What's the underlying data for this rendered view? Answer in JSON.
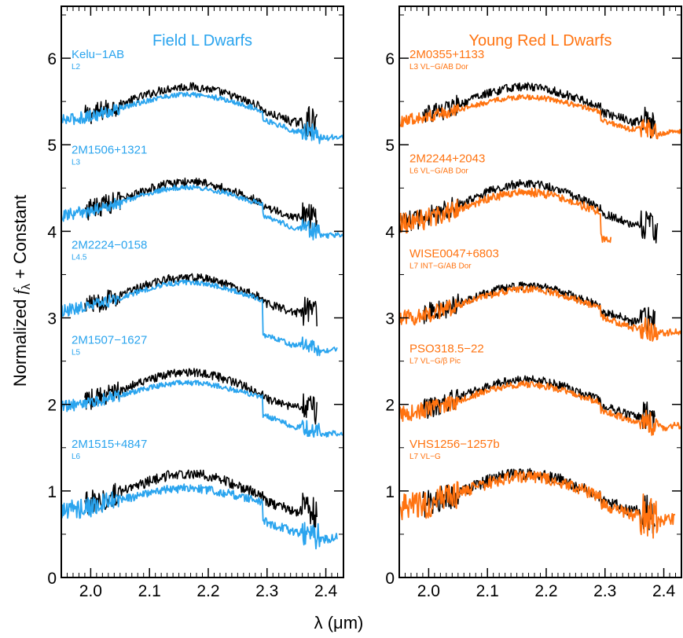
{
  "figure": {
    "ylabel_main": "Normalized ",
    "ylabel_f": "f",
    "ylabel_sub": "λ",
    "ylabel_tail": " + Constant",
    "xlabel": "λ (μm)",
    "colors": {
      "black": "#000000",
      "blue": "#2aa4ee",
      "orange": "#ff7310"
    }
  },
  "chart_data": [
    {
      "type": "line",
      "title": "Field L Dwarfs",
      "title_color": "#2aa4ee",
      "xlim": [
        1.95,
        2.43
      ],
      "ylim": [
        0,
        6.6
      ],
      "xticks": [
        "2.0",
        "2.1",
        "2.2",
        "2.3",
        "2.4"
      ],
      "yticks": [
        "0",
        "1",
        "2",
        "3",
        "4",
        "5",
        "6"
      ],
      "grid": false,
      "series": [
        {
          "name": "Kelu−1AB",
          "spt": "L2",
          "offset": 5.3,
          "object": {
            "start": 1.99,
            "end": 2.385,
            "peak": 0.42,
            "co_drop": 0.05,
            "noise": 0.05
          },
          "comparison": {
            "start": 1.95,
            "end": 2.43,
            "peak": 0.33,
            "co_drop": 0.1,
            "tail_slope": 0.7,
            "noise": 0.03
          }
        },
        {
          "name": "2M1506+1321",
          "spt": "L3",
          "offset": 4.2,
          "object": {
            "start": 1.99,
            "end": 2.385,
            "peak": 0.42,
            "co_drop": 0.05,
            "noise": 0.05
          },
          "comparison": {
            "start": 1.95,
            "end": 2.43,
            "peak": 0.36,
            "co_drop": 0.12,
            "tail_slope": 0.8,
            "noise": 0.03
          }
        },
        {
          "name": "2M2224−0158",
          "spt": "L4.5",
          "offset": 3.1,
          "object": {
            "start": 1.99,
            "end": 2.385,
            "peak": 0.42,
            "co_drop": 0.05,
            "noise": 0.05
          },
          "comparison": {
            "start": 1.95,
            "end": 2.42,
            "peak": 0.36,
            "co_drop": 0.4,
            "tail_slope": 0.3,
            "noise": 0.03
          }
        },
        {
          "name": "2M1507−1627",
          "spt": "L5",
          "offset": 2.0,
          "object": {
            "start": 1.99,
            "end": 2.385,
            "peak": 0.42,
            "co_drop": 0.05,
            "noise": 0.05
          },
          "comparison": {
            "start": 1.95,
            "end": 2.43,
            "peak": 0.3,
            "co_drop": 0.2,
            "tail_slope": 0.9,
            "noise": 0.03
          }
        },
        {
          "name": "2M1515+4847",
          "spt": "L6",
          "offset": 0.8,
          "object": {
            "start": 1.99,
            "end": 2.385,
            "peak": 0.45,
            "co_drop": 0.05,
            "noise": 0.06
          },
          "comparison": {
            "start": 1.95,
            "end": 2.42,
            "peak": 0.28,
            "co_drop": 0.22,
            "tail_slope": 0.8,
            "noise": 0.05
          }
        }
      ]
    },
    {
      "type": "line",
      "title": "Young Red L Dwarfs",
      "title_color": "#ff7310",
      "xlim": [
        1.95,
        2.43
      ],
      "ylim": [
        0,
        6.6
      ],
      "xticks": [
        "2.0",
        "2.1",
        "2.2",
        "2.3",
        "2.4"
      ],
      "yticks": [
        "0",
        "1",
        "2",
        "3",
        "4",
        "5",
        "6"
      ],
      "grid": false,
      "series": [
        {
          "name": "2M0355+1133",
          "spt": "L3 VL−G/AB Dor",
          "offset": 5.3,
          "object": {
            "start": 1.99,
            "end": 2.385,
            "peak": 0.42,
            "co_drop": 0.05,
            "noise": 0.05
          },
          "comparison": {
            "start": 1.95,
            "end": 2.43,
            "peak": 0.3,
            "co_drop": 0.1,
            "tail_slope": 0.2,
            "noise": 0.03
          }
        },
        {
          "name": "2M2244+2043",
          "spt": "L6 VL−G/AB Dor",
          "offset": 4.1,
          "object": {
            "start": 1.95,
            "end": 2.39,
            "peak": 0.5,
            "co_drop": 0.05,
            "noise": 0.05
          },
          "comparison": {
            "start": 1.95,
            "end": 2.31,
            "peak": 0.4,
            "co_drop": 0.3,
            "tail_slope": 0.0,
            "noise": 0.05
          }
        },
        {
          "name": "WISE0047+6803",
          "spt": "L7 INT−G/AB Dor",
          "offset": 3.0,
          "object": {
            "start": 1.99,
            "end": 2.385,
            "peak": 0.42,
            "co_drop": 0.05,
            "noise": 0.05
          },
          "comparison": {
            "start": 1.95,
            "end": 2.43,
            "peak": 0.38,
            "co_drop": 0.1,
            "tail_slope": 0.3,
            "noise": 0.04
          }
        },
        {
          "name": "PSO318.5−22",
          "spt": "L7 VL−G/β Pic",
          "offset": 1.9,
          "object": {
            "start": 1.99,
            "end": 2.385,
            "peak": 0.44,
            "co_drop": 0.05,
            "noise": 0.05
          },
          "comparison": {
            "start": 1.95,
            "end": 2.43,
            "peak": 0.38,
            "co_drop": 0.08,
            "tail_slope": 0.4,
            "noise": 0.04
          }
        },
        {
          "name": "VHS1256−1257b",
          "spt": "L7 VL−G",
          "offset": 0.8,
          "object": {
            "start": 1.99,
            "end": 2.385,
            "peak": 0.45,
            "co_drop": 0.05,
            "noise": 0.07
          },
          "comparison": {
            "start": 1.95,
            "end": 2.42,
            "peak": 0.42,
            "co_drop": 0.08,
            "tail_slope": 0.2,
            "noise": 0.07
          }
        }
      ]
    }
  ]
}
